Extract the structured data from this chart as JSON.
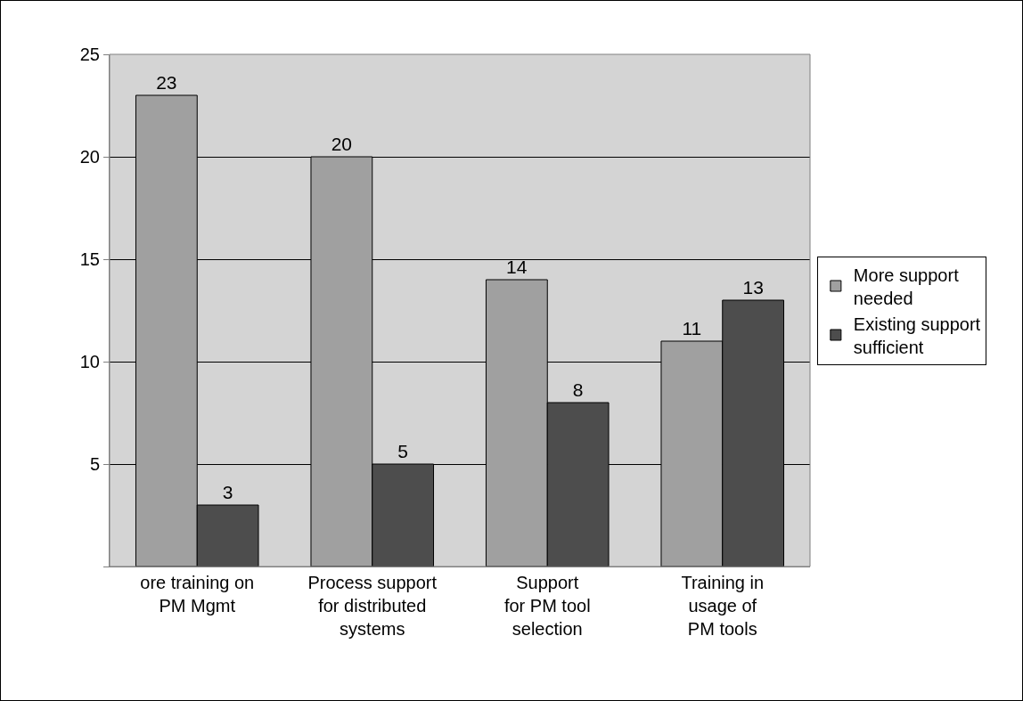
{
  "chart_data": {
    "type": "bar",
    "categories": [
      "ore training on\nPM Mgmt",
      "Process support\nfor distributed\nsystems",
      "Support\nfor PM tool\nselection",
      "Training in\nusage of\nPM tools"
    ],
    "series": [
      {
        "name": "More support\nneeded",
        "color": "#a0a0a0",
        "values": [
          23,
          20,
          14,
          11
        ]
      },
      {
        "name": "Existing support\nsufficient",
        "color": "#4d4d4d",
        "values": [
          3,
          5,
          8,
          13
        ]
      }
    ],
    "ylim": [
      0,
      25
    ],
    "yticks": [
      {
        "value": 0,
        "label": null
      },
      5,
      10,
      15,
      20,
      25
    ],
    "grid": "y",
    "legend": "right",
    "data_labels": true
  }
}
